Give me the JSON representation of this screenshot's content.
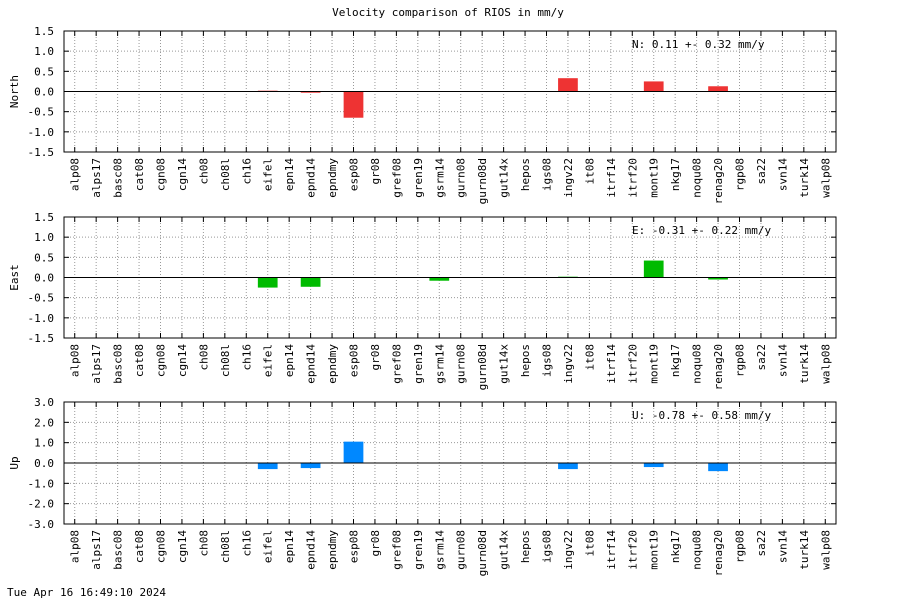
{
  "title": "Velocity comparison of RIOS in mm/y",
  "timestamp": "Tue Apr 16 16:49:10 2024",
  "chart_data": [
    {
      "type": "bar",
      "ylabel": "North",
      "ylim": [
        -1.5,
        1.5
      ],
      "yticks": [
        "1.5",
        "1.0",
        "0.5",
        "0.0",
        "-0.5",
        "-1.0",
        "-1.5"
      ],
      "annotation": "N:   0.11 +-  0.32 mm/y",
      "color": "#ee3333",
      "grid": true,
      "categories": [
        "alp08",
        "alps17",
        "basc08",
        "cat08",
        "cgn08",
        "cgn14",
        "ch08",
        "ch08l",
        "ch16",
        "eifel",
        "epn14",
        "epnd14",
        "epndmy",
        "esp08",
        "gr08",
        "gref08",
        "gren19",
        "gsrm14",
        "gurn08",
        "gurn08d",
        "gut14x",
        "hepos",
        "igs08",
        "ingv22",
        "it08",
        "itrf14",
        "itrf20",
        "mont19",
        "nkg17",
        "noqu08",
        "renag20",
        "rgp08",
        "sa22",
        "svn14",
        "turk14",
        "walp08"
      ],
      "values": [
        0,
        0,
        0,
        0,
        0,
        0,
        0,
        0,
        0,
        0.02,
        0,
        -0.03,
        0,
        -0.65,
        0,
        0,
        0,
        0,
        0,
        0,
        0,
        0,
        0,
        0.33,
        0,
        0,
        0,
        0.25,
        0,
        0,
        0.13,
        0,
        0,
        0,
        0,
        0
      ]
    },
    {
      "type": "bar",
      "ylabel": "East",
      "ylim": [
        -1.5,
        1.5
      ],
      "yticks": [
        "1.5",
        "1.0",
        "0.5",
        "0.0",
        "-0.5",
        "-1.0",
        "-1.5"
      ],
      "annotation": "E:  -0.31 +-  0.22 mm/y",
      "color": "#00bb00",
      "grid": true,
      "categories": [
        "alp08",
        "alps17",
        "basc08",
        "cat08",
        "cgn08",
        "cgn14",
        "ch08",
        "ch08l",
        "ch16",
        "eifel",
        "epn14",
        "epnd14",
        "epndmy",
        "esp08",
        "gr08",
        "gref08",
        "gren19",
        "gsrm14",
        "gurn08",
        "gurn08d",
        "gut14x",
        "hepos",
        "igs08",
        "ingv22",
        "it08",
        "itrf14",
        "itrf20",
        "mont19",
        "nkg17",
        "noqu08",
        "renag20",
        "rgp08",
        "sa22",
        "svn14",
        "turk14",
        "walp08"
      ],
      "values": [
        0,
        0,
        0,
        0,
        0,
        0,
        0,
        0,
        0,
        -0.25,
        0,
        -0.23,
        0,
        0,
        0,
        0,
        0,
        -0.08,
        0,
        0,
        0,
        0,
        0,
        0.02,
        0,
        0,
        0,
        0.42,
        0,
        0,
        -0.05,
        0,
        0,
        0,
        0,
        0
      ]
    },
    {
      "type": "bar",
      "ylabel": "Up",
      "ylim": [
        -3.0,
        3.0
      ],
      "yticks": [
        "3.0",
        "2.0",
        "1.0",
        "0.0",
        "-1.0",
        "-2.0",
        "-3.0"
      ],
      "annotation": "U:  -0.78 +-  0.58 mm/y",
      "color": "#0088ff",
      "grid": true,
      "categories": [
        "alp08",
        "alps17",
        "basc08",
        "cat08",
        "cgn08",
        "cgn14",
        "ch08",
        "ch08l",
        "ch16",
        "eifel",
        "epn14",
        "epnd14",
        "epndmy",
        "esp08",
        "gr08",
        "gref08",
        "gren19",
        "gsrm14",
        "gurn08",
        "gurn08d",
        "gut14x",
        "hepos",
        "igs08",
        "ingv22",
        "it08",
        "itrf14",
        "itrf20",
        "mont19",
        "nkg17",
        "noqu08",
        "renag20",
        "rgp08",
        "sa22",
        "svn14",
        "turk14",
        "walp08"
      ],
      "values": [
        0,
        0,
        0,
        0,
        0,
        0,
        0,
        0,
        0,
        -0.3,
        0,
        -0.25,
        0,
        1.05,
        0,
        0,
        0,
        0,
        0,
        0,
        0,
        0,
        0,
        -0.3,
        0,
        0,
        0,
        -0.2,
        0,
        0,
        -0.4,
        0,
        0,
        0,
        0,
        0
      ]
    }
  ]
}
